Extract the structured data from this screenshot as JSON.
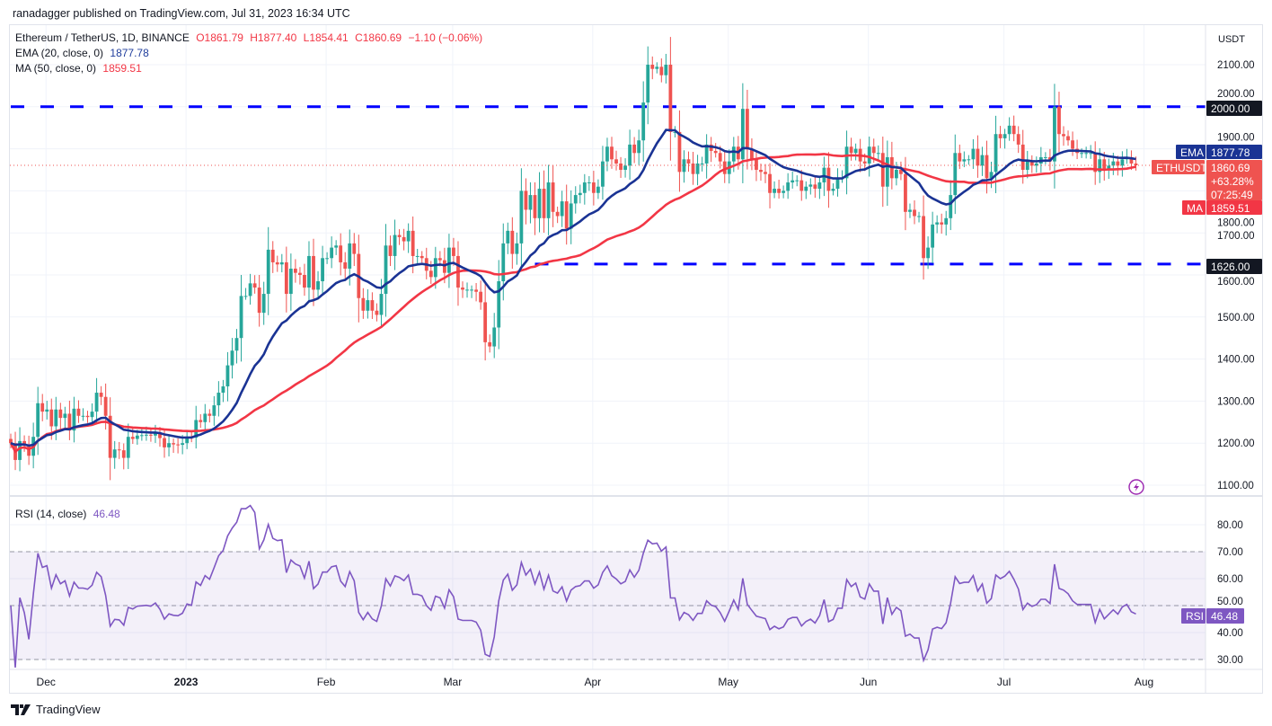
{
  "header": {
    "published": "ranadagger published on TradingView.com, Jul 31, 2023 16:34 UTC"
  },
  "legend": {
    "symbol": "Ethereum / TetherUS, 1D, BINANCE",
    "open": "O1861.79",
    "high": "H1877.40",
    "low": "L1854.41",
    "close": "C1860.69",
    "change": "−1.10 (−0.06%)",
    "ema_label": "EMA (20, close, 0)",
    "ema_value": "1877.78",
    "ma_label": "MA (50, close, 0)",
    "ma_value": "1859.51",
    "rsi_label": "RSI (14, close)",
    "rsi_value": "46.48"
  },
  "price_scale": {
    "currency": "USDT",
    "ticks": [
      "2100.00",
      "2000.00",
      "1900.00",
      "1800.00",
      "1700.00",
      "1600.00",
      "1500.00",
      "1400.00",
      "1300.00",
      "1200.00",
      "1100.00"
    ],
    "badges": {
      "ema_tag": "EMA",
      "ema_value": "1877.78",
      "symbol_tag": "ETHUSDT",
      "last_price": "1860.69",
      "change_pct": "+63.28%",
      "countdown": "07:25:49",
      "ma_tag": "MA",
      "ma_value": "1859.51",
      "level_high": "2000.00",
      "level_low": "1626.00",
      "rsi_tag": "RSI",
      "rsi_value": "46.48"
    }
  },
  "rsi_scale": {
    "ticks": [
      "80.00",
      "70.00",
      "60.00",
      "50.00",
      "40.00",
      "30.00"
    ]
  },
  "time_axis": {
    "labels": [
      "Dec",
      "2023",
      "Feb",
      "Mar",
      "Apr",
      "May",
      "Jun",
      "Jul",
      "Aug"
    ]
  },
  "footer": {
    "brand": "TradingView"
  },
  "icons": {
    "alert": "lightning-icon",
    "logo": "tradingview-logo"
  },
  "colors": {
    "up": "#26a69a",
    "down": "#ef5350",
    "ema": "#1a3394",
    "ma": "#f23645",
    "levels": "#0000ff",
    "rsi": "#7e57c2"
  },
  "chart_data": {
    "type": "candlestick",
    "symbol": "ETHUSDT",
    "interval": "1D",
    "start_date": "2022-11-24",
    "end_date": "2023-07-31",
    "ylim": [
      1080,
      2160
    ],
    "grid": true,
    "indicators": {
      "ema_period": 20,
      "ma_period": 50,
      "rsi_period": 14,
      "rsi_levels": [
        30,
        50,
        70
      ],
      "rsi_ylim": [
        25,
        90
      ]
    },
    "horizontal_levels": [
      {
        "value": 2000,
        "from": "2022-11-24"
      },
      {
        "value": 1626,
        "from": "2023-03-20"
      }
    ],
    "close": [
      1200,
      1160,
      1205,
      1195,
      1170,
      1215,
      1295,
      1275,
      1280,
      1240,
      1280,
      1260,
      1270,
      1230,
      1282,
      1265,
      1265,
      1262,
      1275,
      1320,
      1310,
      1265,
      1165,
      1185,
      1183,
      1165,
      1215,
      1210,
      1218,
      1219,
      1220,
      1218,
      1225,
      1212,
      1190,
      1200,
      1197,
      1196,
      1200,
      1215,
      1213,
      1255,
      1250,
      1270,
      1265,
      1290,
      1320,
      1335,
      1385,
      1420,
      1450,
      1550,
      1550,
      1580,
      1570,
      1510,
      1555,
      1660,
      1630,
      1625,
      1630,
      1555,
      1615,
      1605,
      1600,
      1570,
      1645,
      1565,
      1585,
      1640,
      1640,
      1665,
      1670,
      1630,
      1615,
      1675,
      1650,
      1545,
      1515,
      1540,
      1515,
      1505,
      1555,
      1670,
      1645,
      1695,
      1690,
      1680,
      1705,
      1645,
      1645,
      1640,
      1610,
      1595,
      1640,
      1635,
      1605,
      1665,
      1645,
      1570,
      1565,
      1565,
      1565,
      1560,
      1535,
      1440,
      1430,
      1475,
      1585,
      1675,
      1705,
      1650,
      1675,
      1800,
      1755,
      1790,
      1735,
      1805,
      1735,
      1820,
      1750,
      1740,
      1775,
      1710,
      1770,
      1790,
      1795,
      1820,
      1820,
      1795,
      1810,
      1870,
      1905,
      1875,
      1865,
      1850,
      1860,
      1910,
      1890,
      1920,
      2010,
      2100,
      2090,
      2095,
      2075,
      2100,
      1940,
      1940,
      1845,
      1875,
      1865,
      1840,
      1865,
      1865,
      1910,
      1895,
      1890,
      1870,
      1840,
      1870,
      1905,
      1875,
      1995,
      1900,
      1875,
      1850,
      1845,
      1840,
      1795,
      1805,
      1795,
      1800,
      1820,
      1825,
      1825,
      1800,
      1810,
      1815,
      1805,
      1820,
      1855,
      1800,
      1805,
      1830,
      1830,
      1905,
      1890,
      1900,
      1870,
      1865,
      1905,
      1890,
      1890,
      1810,
      1880,
      1830,
      1850,
      1840,
      1750,
      1755,
      1740,
      1740,
      1640,
      1665,
      1720,
      1725,
      1720,
      1735,
      1790,
      1890,
      1870,
      1875,
      1875,
      1900,
      1860,
      1885,
      1830,
      1845,
      1935,
      1925,
      1935,
      1955,
      1935,
      1910,
      1850,
      1870,
      1860,
      1865,
      1880,
      1880,
      1870,
      2000,
      1935,
      1930,
      1920,
      1900,
      1890,
      1890,
      1890,
      1890,
      1845,
      1875,
      1850,
      1860,
      1870,
      1860,
      1875,
      1880,
      1865,
      1860.69
    ]
  }
}
